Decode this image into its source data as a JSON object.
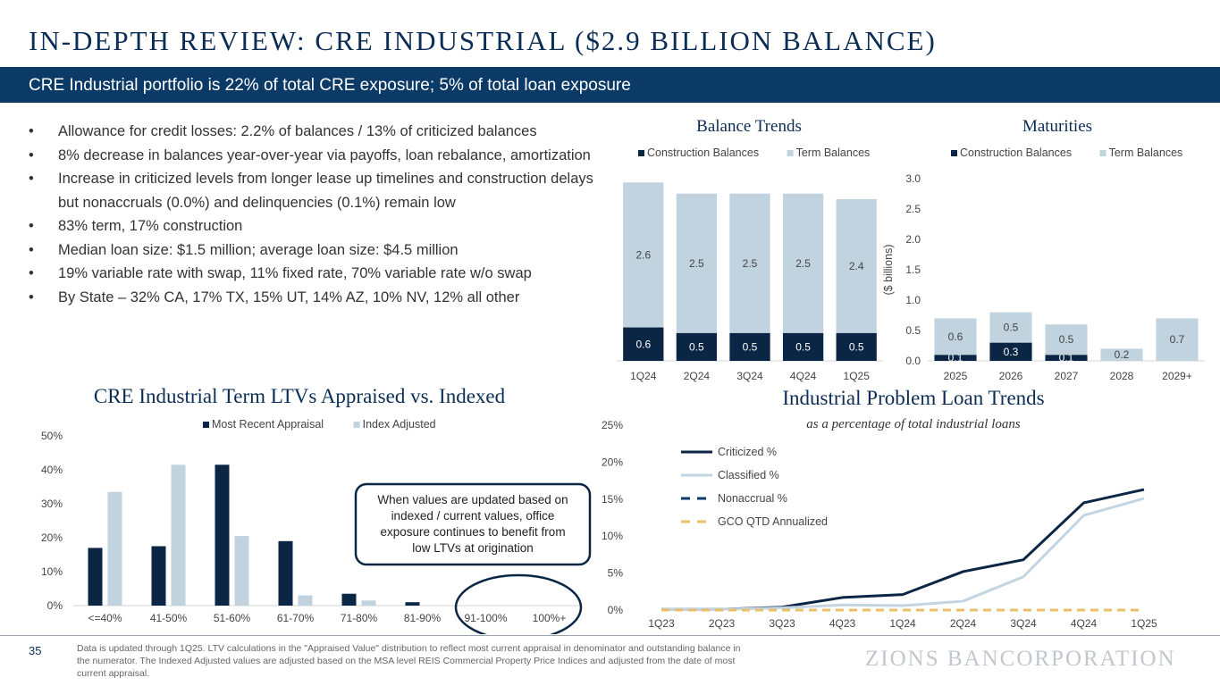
{
  "page": {
    "title": "IN-DEPTH REVIEW: CRE INDUSTRIAL ($2.9 BILLION BALANCE)",
    "banner": "CRE Industrial portfolio is 22% of total CRE exposure; 5% of total loan exposure",
    "bullets": [
      "Allowance for credit losses: 2.2% of balances / 13% of criticized balances",
      "8% decrease in balances year-over-year via payoffs, loan rebalance, amortization",
      "Increase in criticized levels from longer lease up timelines and construction delays but nonaccruals (0.0%) and delinquencies (0.1%) remain low",
      "83% term, 17% construction",
      "Median loan size: $1.5 million; average loan size: $4.5 million",
      "19% variable rate with swap, 11% fixed rate, 70% variable rate w/o swap",
      "By State – 32% CA, 17% TX, 15% UT, 14% AZ, 10% NV, 12% all other"
    ],
    "page_number": "35",
    "footnote": "Data is updated through 1Q25.  LTV calculations in the \"Appraised Value\" distribution to reflect most current appraisal in denominator and outstanding balance in the numerator. The Indexed Adjusted values are adjusted based on the MSA level REIS Commercial Property Price Indices and adjusted from the date of most current appraisal.",
    "logo": "ZIONS BANCORPORATION",
    "callout": "When values are updated based on indexed / current values, office exposure continues to benefit from low LTVs at origination"
  },
  "colors": {
    "navy": "#0b2545",
    "light_blue": "#c2d3e0",
    "banner": "#0b3a66",
    "gold": "#e8c068",
    "grid": "#e2e6ea"
  },
  "chart_data": [
    {
      "id": "balance_trends",
      "type": "bar",
      "stacked": true,
      "title": "Balance Trends",
      "categories": [
        "1Q24",
        "2Q24",
        "3Q24",
        "4Q24",
        "1Q25"
      ],
      "series": [
        {
          "name": "Construction Balances",
          "values": [
            0.6,
            0.5,
            0.5,
            0.5,
            0.5
          ],
          "labels": [
            "0.6",
            "0.5",
            "0.5",
            "0.5",
            "0.5"
          ]
        },
        {
          "name": "Term Balances",
          "values": [
            2.6,
            2.5,
            2.5,
            2.5,
            2.4
          ],
          "labels": [
            "2.6",
            "2.5",
            "2.5",
            "2.5",
            "2.4"
          ]
        }
      ],
      "ylim": [
        0,
        3.3
      ],
      "legend": "top"
    },
    {
      "id": "maturities",
      "type": "bar",
      "stacked": true,
      "title": "Maturities",
      "categories": [
        "2025",
        "2026",
        "2027",
        "2028",
        "2029+"
      ],
      "series": [
        {
          "name": "Construction Balances",
          "values": [
            0.1,
            0.3,
            0.1,
            0.0,
            0.0
          ],
          "labels": [
            "0.1",
            "0.3",
            "0.1",
            "",
            ""
          ]
        },
        {
          "name": "Term Balances",
          "values": [
            0.6,
            0.5,
            0.5,
            0.2,
            0.7
          ],
          "labels": [
            "0.6",
            "0.5",
            "0.5",
            "0.2",
            "0.7"
          ]
        }
      ],
      "ylabel": "($ billions)",
      "yticks": [
        "0.0",
        "0.5",
        "1.0",
        "1.5",
        "2.0",
        "2.5",
        "3.0"
      ],
      "ylim": [
        0,
        3.0
      ],
      "legend": "top"
    },
    {
      "id": "ltv",
      "type": "bar",
      "title": "CRE Industrial Term LTVs Appraised vs. Indexed",
      "categories": [
        "<=40%",
        "41-50%",
        "51-60%",
        "61-70%",
        "71-80%",
        "81-90%",
        "91-100%",
        "100%+"
      ],
      "series": [
        {
          "name": "Most Recent Appraisal",
          "values": [
            17,
            17.5,
            41.5,
            19,
            3.5,
            1,
            0,
            0
          ]
        },
        {
          "name": "Index Adjusted",
          "values": [
            33.5,
            41.5,
            20.5,
            3,
            1.5,
            0,
            0,
            0
          ]
        }
      ],
      "yticks": [
        "0%",
        "10%",
        "20%",
        "30%",
        "40%",
        "50%"
      ],
      "ylim": [
        0,
        50
      ],
      "legend": "top"
    },
    {
      "id": "problem_loans",
      "type": "line",
      "title": "Industrial Problem Loan Trends",
      "subtitle": "as a percentage of total industrial loans",
      "categories": [
        "1Q23",
        "2Q23",
        "3Q23",
        "4Q23",
        "1Q24",
        "2Q24",
        "3Q24",
        "4Q24",
        "1Q25"
      ],
      "series": [
        {
          "name": "Criticized %",
          "values": [
            0.1,
            0.1,
            0.4,
            1.7,
            2.1,
            5.2,
            6.8,
            14.5,
            16.3
          ]
        },
        {
          "name": "Classified %",
          "values": [
            0.1,
            0.1,
            0.3,
            0.7,
            0.6,
            1.2,
            4.5,
            12.8,
            15.1
          ]
        },
        {
          "name": "Nonaccrual %",
          "values": [
            0.0,
            0.0,
            0.0,
            0.0,
            0.0,
            0.0,
            0.0,
            0.0,
            0.0
          ]
        },
        {
          "name": "GCO QTD Annualized",
          "values": [
            0.0,
            0.0,
            0.0,
            0.0,
            0.0,
            0.0,
            0.0,
            0.0,
            0.0
          ]
        }
      ],
      "yticks": [
        "0%",
        "5%",
        "10%",
        "15%",
        "20%",
        "25%"
      ],
      "ylim": [
        0,
        25
      ],
      "legend": "top-left"
    }
  ]
}
